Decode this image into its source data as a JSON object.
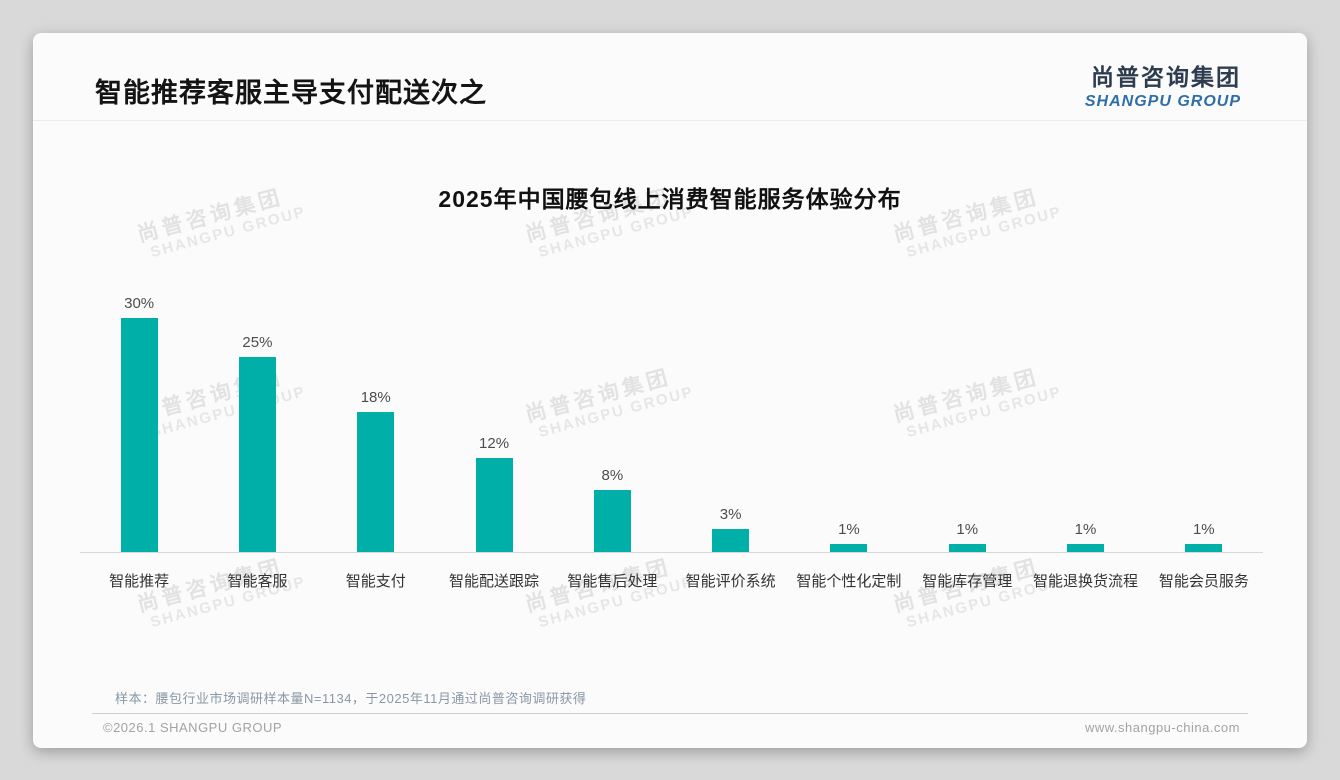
{
  "header": {
    "title": "智能推荐客服主导支付配送次之",
    "logo_cn": "尚普咨询集团",
    "logo_en": "SHANGPU GROUP"
  },
  "watermark": {
    "cn": "尚普咨询集团",
    "en": "SHANGPU GROUP"
  },
  "chart_data": {
    "type": "bar",
    "title": "2025年中国腰包线上消费智能服务体验分布",
    "categories": [
      "智能推荐",
      "智能客服",
      "智能支付",
      "智能配送跟踪",
      "智能售后处理",
      "智能评价系统",
      "智能个性化定制",
      "智能库存管理",
      "智能退换货流程",
      "智能会员服务"
    ],
    "values": [
      30,
      25,
      18,
      12,
      8,
      3,
      1,
      1,
      1,
      1
    ],
    "value_labels": [
      "30%",
      "25%",
      "18%",
      "12%",
      "8%",
      "3%",
      "1%",
      "1%",
      "1%",
      "1%"
    ],
    "unit": "%",
    "bar_color": "#00B0A8",
    "ylim": [
      0,
      32
    ],
    "grid": false,
    "legend": "none",
    "xlabel": "",
    "ylabel": ""
  },
  "footer": {
    "note": "样本：腰包行业市场调研样本量N=1134，于2025年11月通过尚普咨询调研获得",
    "copyright": "©2026.1 SHANGPU GROUP",
    "website": "www.shangpu-china.com"
  },
  "colors": {
    "accent_teal": "#00B0A8",
    "logo_navy": "#2E3C4F",
    "logo_blue": "#2F6DA8"
  }
}
